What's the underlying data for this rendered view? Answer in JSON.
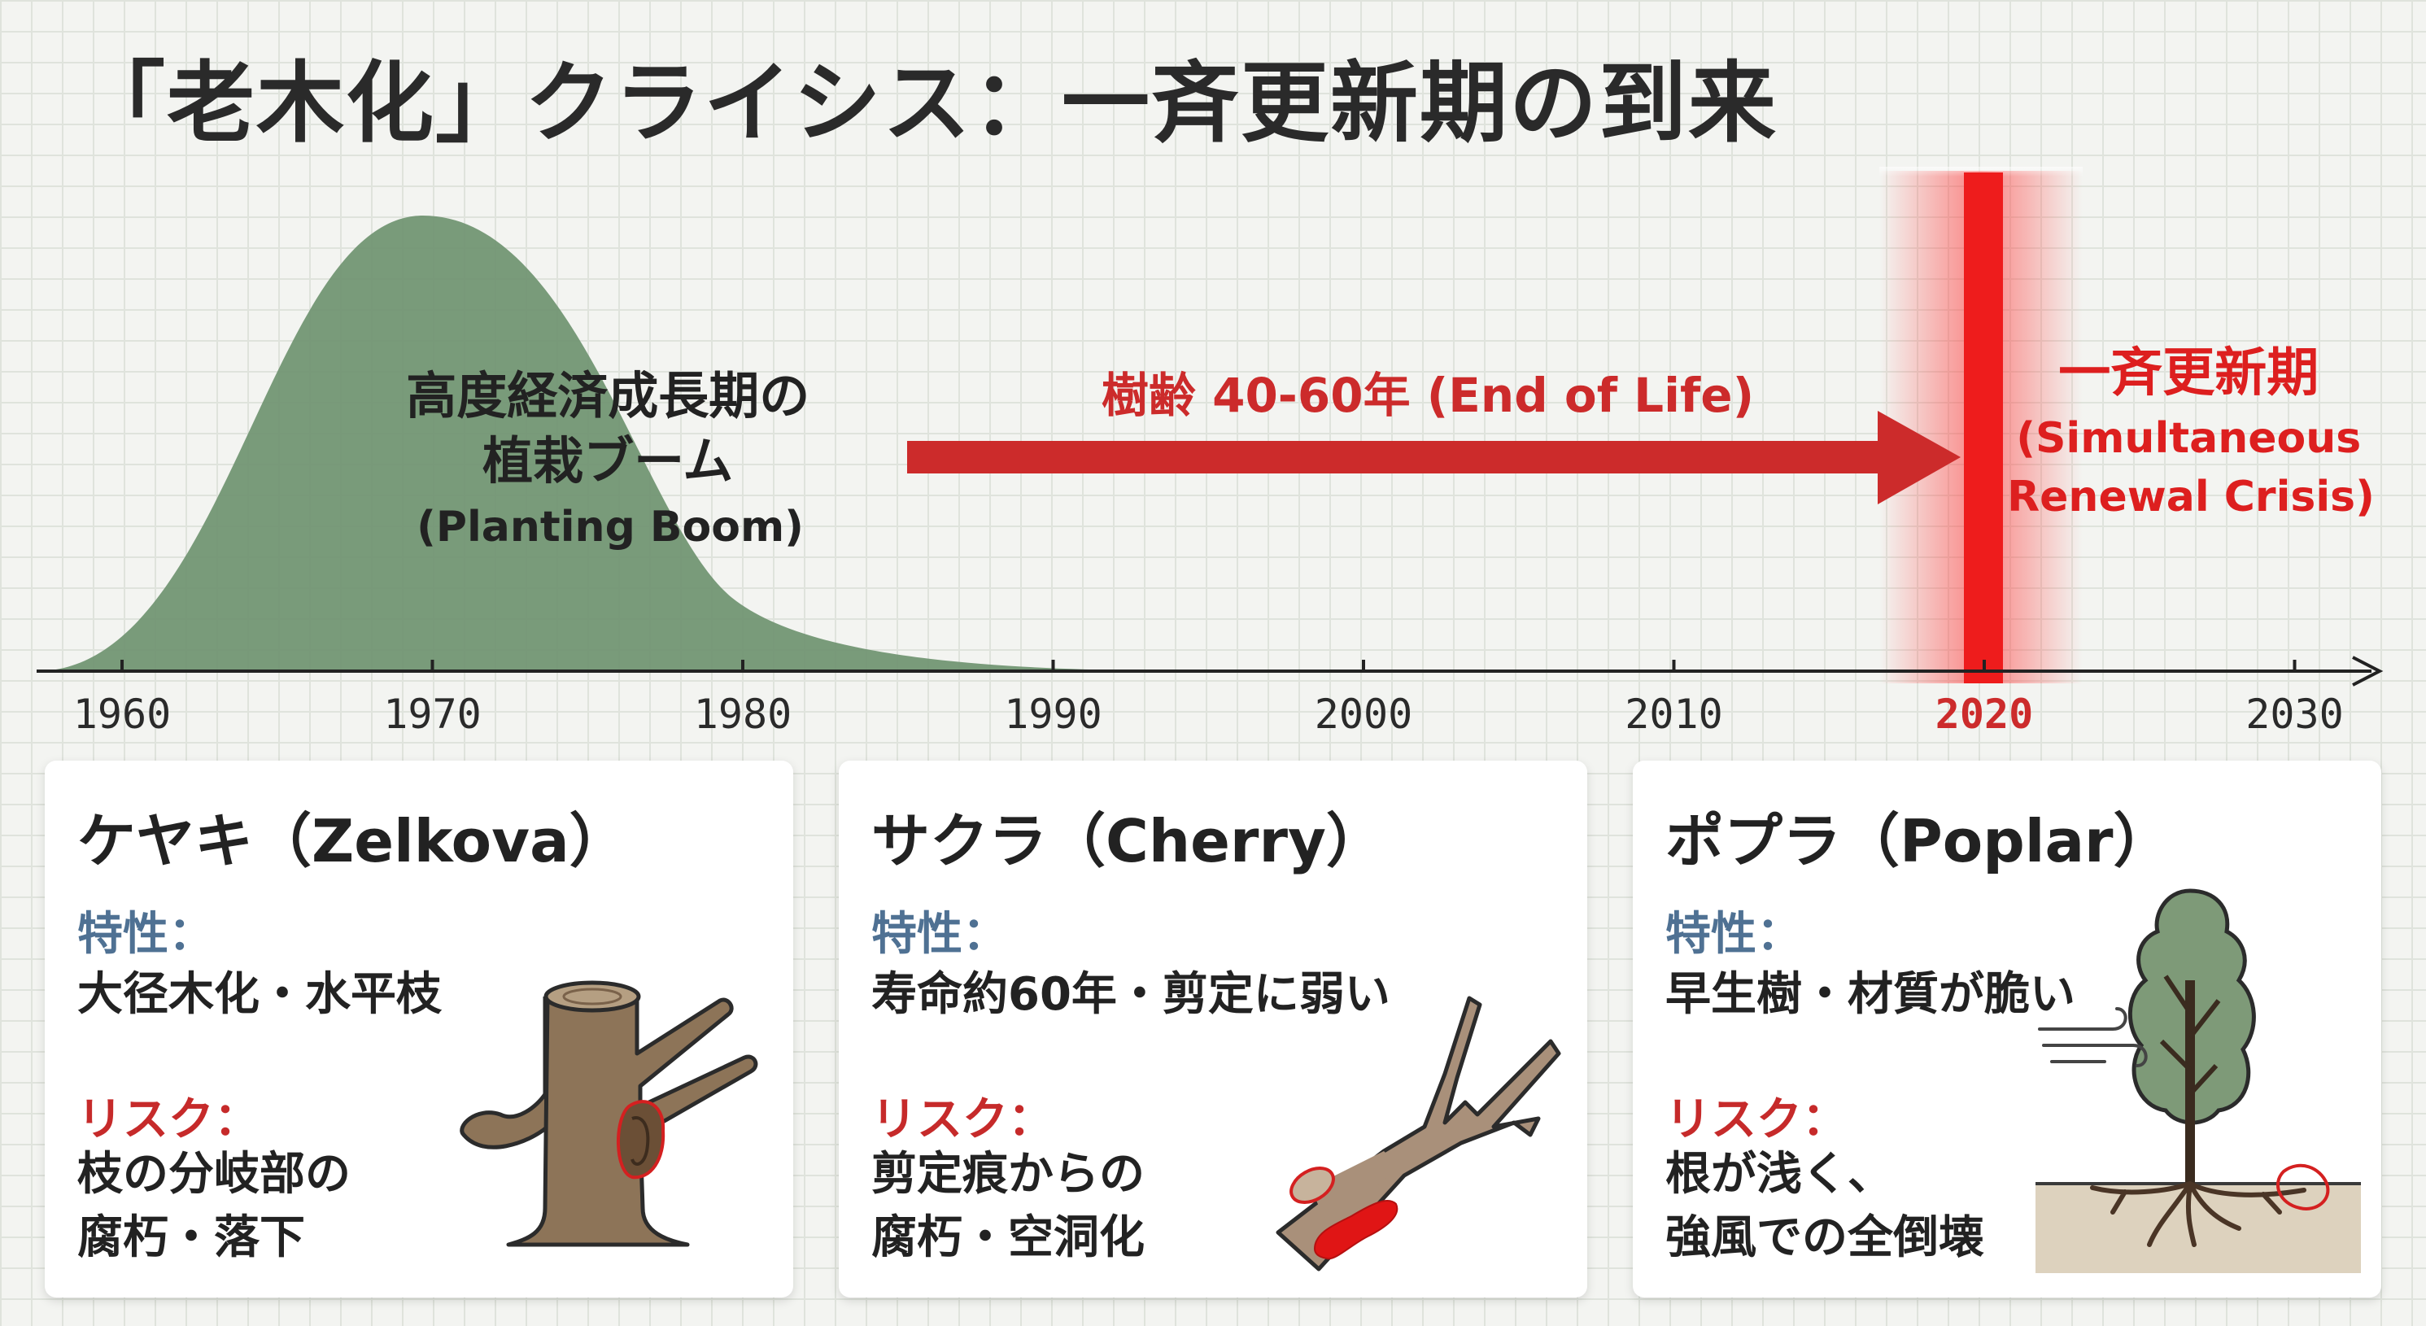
{
  "title": "「老木化」クライシス：一斉更新期の到来",
  "timeline": {
    "ticks": [
      "1960",
      "1970",
      "1980",
      "1990",
      "2000",
      "2010",
      "2020",
      "2030"
    ],
    "highlight_tick": "2020",
    "boom_label": {
      "line1": "高度経済成長期の",
      "line2": "植栽ブーム",
      "line3": "(Planting Boom)"
    },
    "arrow_label": "樹齢 40-60年 (End of Life)",
    "crisis_label": {
      "line1": "一斉更新期",
      "line2": "(Simultaneous",
      "line3": "Renewal Crisis)"
    }
  },
  "cards": [
    {
      "title": "ケヤキ（Zelkova）",
      "trait_label": "特性：",
      "trait_text": "大径木化・水平枝",
      "risk_label": "リスク：",
      "risk_lines": [
        "枝の分岐部の",
        "腐朽・落下"
      ],
      "icon": "zelkova-trunk-icon"
    },
    {
      "title": "サクラ（Cherry）",
      "trait_label": "特性：",
      "trait_text": "寿命約60年・剪定に弱い",
      "risk_label": "リスク：",
      "risk_lines": [
        "剪定痕からの",
        "腐朽・空洞化"
      ],
      "icon": "cherry-branch-icon"
    },
    {
      "title": "ポプラ（Poplar）",
      "trait_label": "特性：",
      "trait_text": "早生樹・材質が脆い",
      "risk_label": "リスク：",
      "risk_lines": [
        "根が浅く、",
        "強風での全倒壊"
      ],
      "icon": "poplar-tree-icon"
    }
  ],
  "colors": {
    "boom_fill": "#6f9270",
    "accent_red": "#cc2b2b",
    "trait_blue": "#4f7193",
    "wood": "#8d7458"
  }
}
